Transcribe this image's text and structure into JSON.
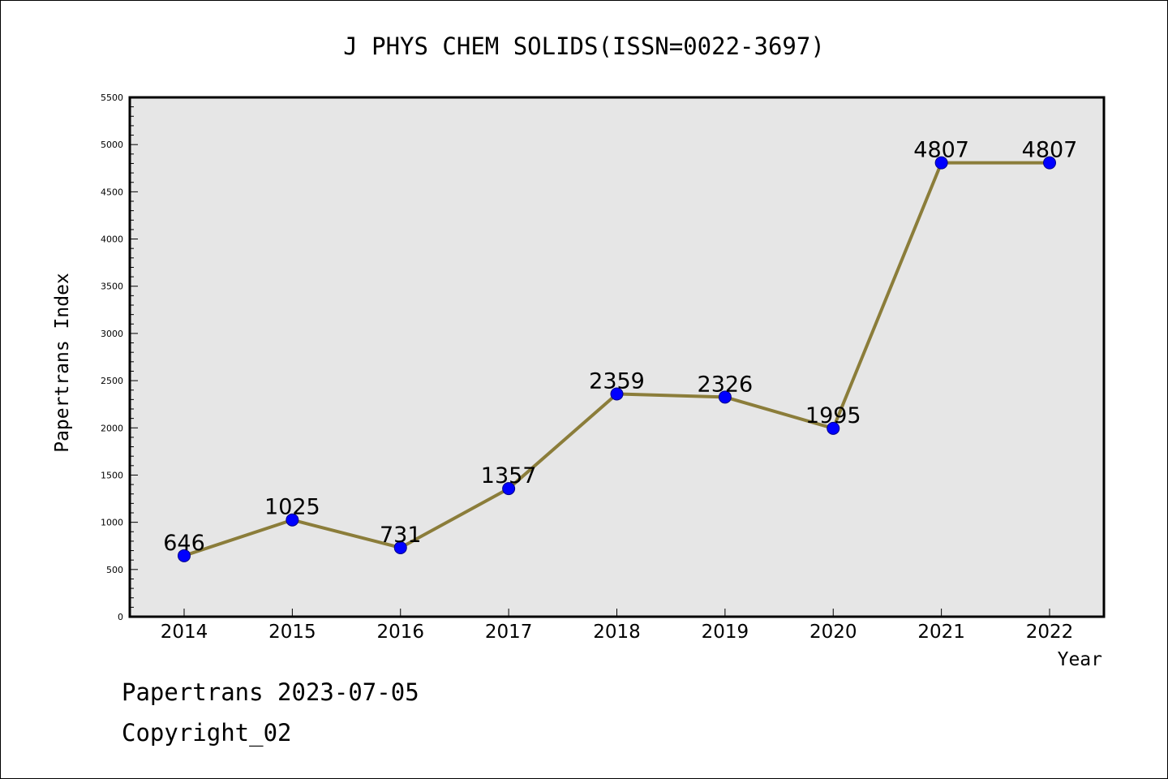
{
  "chart_data": {
    "type": "line",
    "title": "J PHYS CHEM SOLIDS(ISSN=0022-3697)",
    "xlabel": "Year",
    "ylabel": "Papertrans Index",
    "categories": [
      "2014",
      "2015",
      "2016",
      "2017",
      "2018",
      "2019",
      "2020",
      "2021",
      "2022"
    ],
    "series": [
      {
        "name": "",
        "values": [
          646,
          1025,
          731,
          1357,
          2359,
          2326,
          1995,
          4807,
          4807
        ]
      }
    ],
    "data_labels": [
      "646",
      "1025",
      "731",
      "1357",
      "2359",
      "2326",
      "1995",
      "4807",
      "4807"
    ],
    "ylim": [
      0,
      5500
    ],
    "y_ticks": [
      "0",
      "500",
      "1000",
      "1500",
      "2000",
      "2500",
      "3000",
      "3500",
      "4000",
      "4500",
      "5000",
      "5500"
    ],
    "y_tick_values": [
      0,
      500,
      1000,
      1500,
      2000,
      2500,
      3000,
      3500,
      4000,
      4500,
      5000,
      5500
    ],
    "grid": false,
    "legend": "none",
    "colors": {
      "line": "#8b7d3a",
      "marker": "#0000ff",
      "plot_background": "#e6e6e6"
    }
  },
  "footer": {
    "line1": "Papertrans 2023-07-05",
    "line2": "Copyright_02"
  }
}
